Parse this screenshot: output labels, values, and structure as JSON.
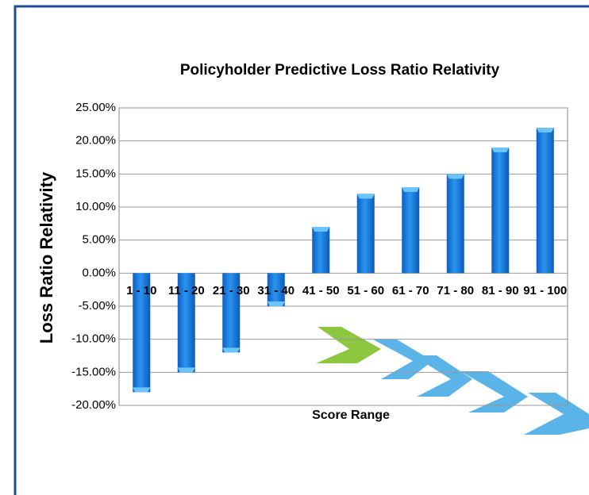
{
  "chart_data": {
    "type": "bar",
    "title": "Policyholder Predictive Loss Ratio Relativity",
    "x_label": "Score Range",
    "y_label": "Loss Ratio Relativity",
    "categories": [
      "1 - 10",
      "11 - 20",
      "21 - 30",
      "31 - 40",
      "41 - 50",
      "51 - 60",
      "61 - 70",
      "71 - 80",
      "81 - 90",
      "91 - 100"
    ],
    "values": [
      -18,
      -15,
      -12,
      -5,
      7,
      12,
      13,
      15,
      19,
      22
    ],
    "color": "#1a7fe0",
    "ylim": [
      -20,
      25
    ],
    "yticks": [
      {
        "value": -20,
        "label": "-20.00%"
      },
      {
        "value": -15,
        "label": "-15.00%"
      },
      {
        "value": -10,
        "label": "-10.00%"
      },
      {
        "value": -5,
        "label": "-5.00%"
      },
      {
        "value": 0,
        "label": "0.00%"
      },
      {
        "value": 5,
        "label": "5.00%"
      },
      {
        "value": 10,
        "label": "10.00%"
      },
      {
        "value": 15,
        "label": "15.00%"
      },
      {
        "value": 20,
        "label": "20.00%"
      },
      {
        "value": 25,
        "label": "25.00%"
      }
    ],
    "grid": true
  }
}
